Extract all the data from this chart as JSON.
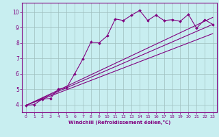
{
  "xlabel": "Windchill (Refroidissement éolien,°C)",
  "bg_color": "#c8eef0",
  "line_color": "#800080",
  "grid_color": "#9fbfbf",
  "xlim": [
    -0.5,
    23.5
  ],
  "ylim": [
    3.5,
    10.6
  ],
  "xticks": [
    0,
    1,
    2,
    3,
    4,
    5,
    6,
    7,
    8,
    9,
    10,
    11,
    12,
    13,
    14,
    15,
    16,
    17,
    18,
    19,
    20,
    21,
    22,
    23
  ],
  "yticks": [
    4,
    5,
    6,
    7,
    8,
    9,
    10
  ],
  "scatter_x": [
    0,
    1,
    2,
    3,
    4,
    5,
    6,
    7,
    8,
    9,
    10,
    11,
    12,
    13,
    14,
    15,
    16,
    17,
    18,
    19,
    20,
    21,
    22,
    23
  ],
  "scatter_y": [
    3.95,
    4.0,
    4.35,
    4.4,
    5.0,
    5.1,
    6.0,
    6.95,
    8.05,
    8.0,
    8.45,
    9.55,
    9.45,
    9.8,
    10.1,
    9.45,
    9.8,
    9.45,
    9.5,
    9.4,
    9.85,
    8.95,
    9.5,
    9.2
  ],
  "line1_x": [
    0,
    23
  ],
  "line1_y": [
    3.95,
    9.2
  ],
  "line2_x": [
    0,
    23
  ],
  "line2_y": [
    3.95,
    8.6
  ],
  "line3_x": [
    0,
    23
  ],
  "line3_y": [
    3.95,
    9.65
  ]
}
